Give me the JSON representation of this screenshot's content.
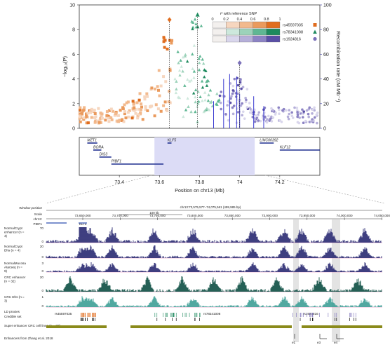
{
  "chart_data": {
    "type": "scatter",
    "regional_plot": {
      "ylabel": "−log₁₀(P)",
      "ylim": [
        0,
        10
      ],
      "yticks": [
        "0",
        "2",
        "4",
        "6",
        "8",
        "10"
      ],
      "y2label": "Recombination rate (cM Mb⁻¹)",
      "y2lim": [
        0,
        100
      ],
      "y2ticks": [
        "0",
        "20",
        "40",
        "60",
        "80",
        "100"
      ],
      "xlabel": "Position on chr13 (Mb)",
      "xlim": [
        73.2,
        74.4
      ],
      "xticks": [
        "73.4",
        "73.6",
        "73.8",
        "74",
        "74.2"
      ],
      "legend_title": "r² with reference SNP",
      "legend_ticks": [
        "0",
        "0.2",
        "0.4",
        "0.6",
        "0.8",
        "1"
      ],
      "lead_snps": [
        {
          "name": "rs45597035",
          "pos": 73.65,
          "p": 8.8
        },
        {
          "name": "rs78341008",
          "pos": 73.79,
          "p": 9.2
        },
        {
          "name": "rs1924816",
          "pos": 74.0,
          "p": 5.3
        }
      ],
      "genes": [
        {
          "name": "MZT1",
          "start": 73.24,
          "end": 73.29
        },
        {
          "name": "BORA",
          "start": 73.27,
          "end": 73.31
        },
        {
          "name": "DIS3",
          "start": 73.3,
          "end": 73.36
        },
        {
          "name": "PIBF1",
          "start": 73.36,
          "end": 73.62
        },
        {
          "name": "KLF5",
          "start": 73.64,
          "end": 73.66
        },
        {
          "name": "LINC00392",
          "start": 74.1,
          "end": 74.17
        },
        {
          "name": "KLF12",
          "start": 74.2,
          "end": 74.4
        }
      ],
      "highlight_region": [
        73.575,
        74.075
      ]
    },
    "browser": {
      "window_label": "Window position",
      "scale_label": "Scale",
      "chrom_label": "chr13:",
      "region_label": "chr13:73,575,577–74,075,561 (499,985 bp)",
      "scale_text": "100 kb",
      "ticks": [
        "73,650,000",
        "73,700,000",
        "73,750,000",
        "73,800,000",
        "73,850,000",
        "73,900,000",
        "73,950,000",
        "74,000,000",
        "74,050,000"
      ],
      "gene_labels": [
        "PIBF1",
        "KLF5"
      ],
      "tracks": [
        {
          "label": "NormalCrypt enhancer (n = 4)",
          "max": "70",
          "color": "#2a2a72"
        },
        {
          "label": "NormalCrypt Dhs (n = 4)",
          "max": "20",
          "color": "#2a2a72"
        },
        {
          "label": "NormalMucosa Atacseq (n = 9)",
          "max": "3",
          "color": "#2a2a72"
        },
        {
          "label": "CRC enhancer (n = 32)",
          "max": "20",
          "color": "#0d4f43"
        },
        {
          "label": "CRC Dhs (n = 3)",
          "max": "1",
          "color": "#3e9f96"
        }
      ],
      "annotation_labels": [
        "LD proxies",
        "Credible set",
        "Super enhancer CRC cell lines (n = 32)",
        "Enhancers from Zhang et al. 2018"
      ],
      "snp_labels": [
        "rs45597035",
        "rs78341008",
        "rs1924816"
      ],
      "enhancer_labels": [
        "e1",
        "e3",
        "e4"
      ]
    }
  }
}
